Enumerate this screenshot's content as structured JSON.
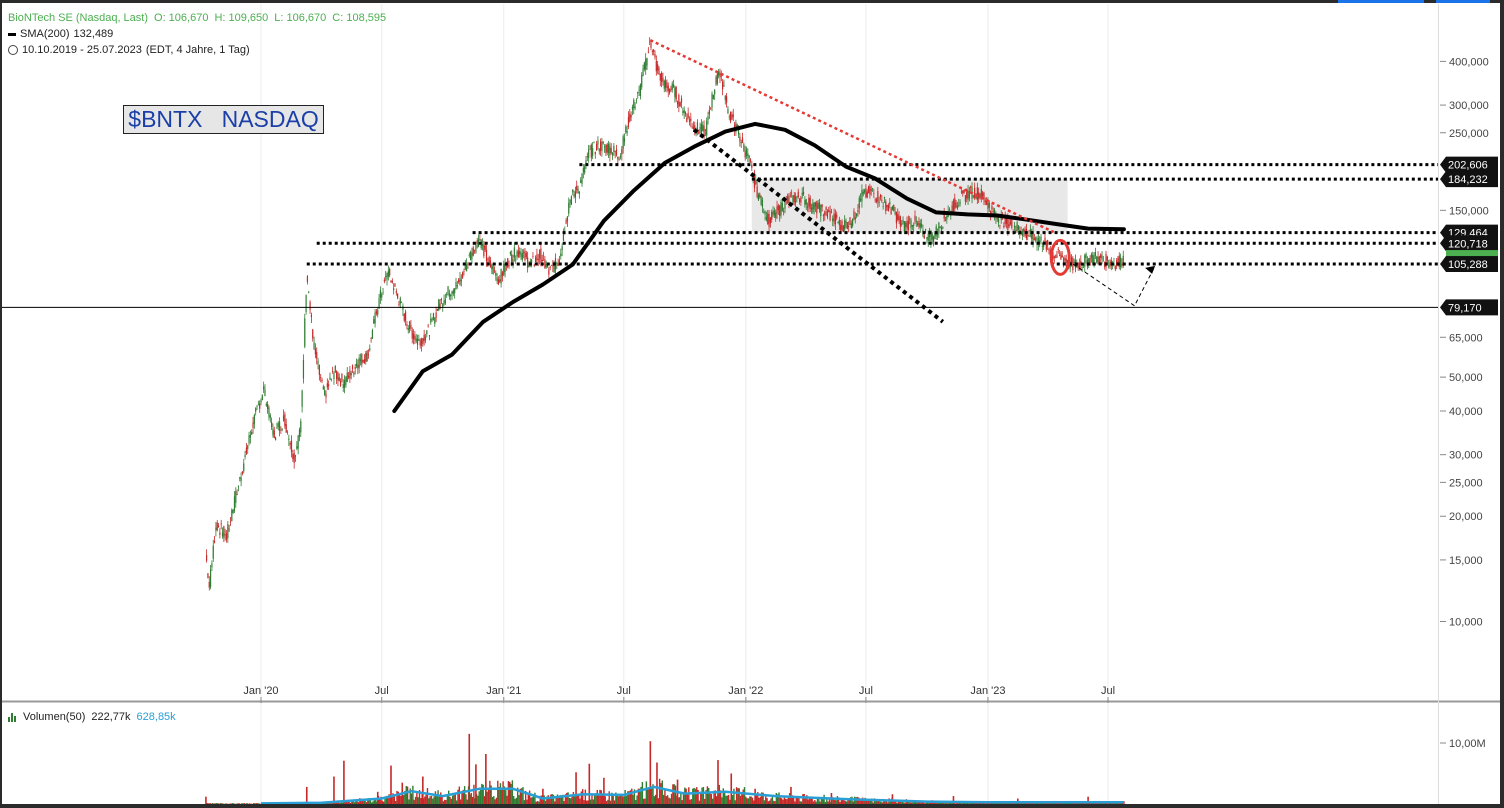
{
  "header": {
    "instrument": "BioNTech SE (Nasdaq, Last)",
    "ohlc": {
      "open": "O: 106,670",
      "high": "H: 109,650",
      "low": "L: 106,670",
      "close": "C: 108,595"
    },
    "sma_label": "SMA(200)",
    "sma_value": "132,489",
    "range": "10.10.2019 - 25.07.2023",
    "range_info": "(EDT, 4 Jahre, 1 Tag)"
  },
  "annotation_box": "$BNTX   NASDAQ",
  "volume_legend": {
    "label": "Volumen(50)",
    "value1": "222,77k",
    "value2": "628,85k"
  },
  "colors": {
    "up": "#2e7d32",
    "down": "#c62828",
    "sma": "#000000",
    "trend_red": "#e53935",
    "volume_ma": "#2a9fd6",
    "level_tag": "#111111",
    "last_price_tag": "#4caf50"
  },
  "chart_data": {
    "type": "line",
    "subtype": "candlestick-price-chart",
    "scale": "log",
    "ylim": [
      10,
      480
    ],
    "xlim": [
      "2019-10-10",
      "2023-07-25"
    ],
    "y_ticks": [
      "400,000",
      "300,000",
      "250,000",
      "150,000",
      "65,000",
      "50,000",
      "40,000",
      "30,000",
      "25,000",
      "20,000",
      "15,000",
      "10,000"
    ],
    "x_ticks": [
      {
        "date": "2020-01-01",
        "label": "Jan '20"
      },
      {
        "date": "2020-07-01",
        "label": "Jul"
      },
      {
        "date": "2021-01-01",
        "label": "Jan '21"
      },
      {
        "date": "2021-07-01",
        "label": "Jul"
      },
      {
        "date": "2022-01-01",
        "label": "Jan '22"
      },
      {
        "date": "2022-07-01",
        "label": "Jul"
      },
      {
        "date": "2023-01-01",
        "label": "Jan '23"
      },
      {
        "date": "2023-07-01",
        "label": "Jul"
      }
    ],
    "price_series": {
      "name": "BioNTech SE (Nasdaq, Last)",
      "points": [
        [
          "2019-10-10",
          15.5
        ],
        [
          "2019-10-15",
          12.5
        ],
        [
          "2019-10-25",
          19.0
        ],
        [
          "2019-11-10",
          17.5
        ],
        [
          "2019-12-01",
          26.0
        ],
        [
          "2019-12-20",
          37.0
        ],
        [
          "2020-01-05",
          46.0
        ],
        [
          "2020-01-20",
          34.0
        ],
        [
          "2020-02-05",
          38.0
        ],
        [
          "2020-02-20",
          29.5
        ],
        [
          "2020-03-01",
          36.0
        ],
        [
          "2020-03-10",
          100.0
        ],
        [
          "2020-03-20",
          62.0
        ],
        [
          "2020-04-05",
          44.0
        ],
        [
          "2020-04-20",
          52.0
        ],
        [
          "2020-05-05",
          48.0
        ],
        [
          "2020-05-25",
          55.0
        ],
        [
          "2020-06-10",
          58.0
        ],
        [
          "2020-06-25",
          80.0
        ],
        [
          "2020-07-10",
          100.0
        ],
        [
          "2020-07-25",
          85.0
        ],
        [
          "2020-08-10",
          70.0
        ],
        [
          "2020-08-25",
          63.0
        ],
        [
          "2020-09-10",
          68.0
        ],
        [
          "2020-09-25",
          80.0
        ],
        [
          "2020-10-10",
          88.0
        ],
        [
          "2020-10-25",
          92.0
        ],
        [
          "2020-11-10",
          110.0
        ],
        [
          "2020-11-25",
          125.0
        ],
        [
          "2020-12-10",
          105.0
        ],
        [
          "2020-12-25",
          95.0
        ],
        [
          "2021-01-10",
          110.0
        ],
        [
          "2021-01-25",
          115.0
        ],
        [
          "2021-02-10",
          105.0
        ],
        [
          "2021-02-25",
          112.0
        ],
        [
          "2021-03-10",
          100.0
        ],
        [
          "2021-03-25",
          108.0
        ],
        [
          "2021-04-10",
          160.0
        ],
        [
          "2021-04-25",
          175.0
        ],
        [
          "2021-05-10",
          220.0
        ],
        [
          "2021-05-25",
          230.0
        ],
        [
          "2021-06-10",
          225.0
        ],
        [
          "2021-06-25",
          215.0
        ],
        [
          "2021-07-10",
          280.0
        ],
        [
          "2021-07-25",
          330.0
        ],
        [
          "2021-08-10",
          460.0
        ],
        [
          "2021-08-20",
          380.0
        ],
        [
          "2021-09-01",
          340.0
        ],
        [
          "2021-09-15",
          330.0
        ],
        [
          "2021-10-01",
          285.0
        ],
        [
          "2021-10-15",
          260.0
        ],
        [
          "2021-11-01",
          250.0
        ],
        [
          "2021-11-12",
          320.0
        ],
        [
          "2021-11-22",
          380.0
        ],
        [
          "2021-12-05",
          290.0
        ],
        [
          "2021-12-20",
          250.0
        ],
        [
          "2022-01-05",
          210.0
        ],
        [
          "2022-01-20",
          165.0
        ],
        [
          "2022-02-05",
          140.0
        ],
        [
          "2022-02-20",
          150.0
        ],
        [
          "2022-03-05",
          160.0
        ],
        [
          "2022-03-25",
          165.0
        ],
        [
          "2022-04-10",
          155.0
        ],
        [
          "2022-04-25",
          150.0
        ],
        [
          "2022-05-10",
          145.0
        ],
        [
          "2022-05-25",
          135.0
        ],
        [
          "2022-06-10",
          140.0
        ],
        [
          "2022-06-25",
          165.0
        ],
        [
          "2022-07-10",
          170.0
        ],
        [
          "2022-07-25",
          160.0
        ],
        [
          "2022-08-10",
          150.0
        ],
        [
          "2022-08-25",
          135.0
        ],
        [
          "2022-09-10",
          140.0
        ],
        [
          "2022-09-25",
          130.0
        ],
        [
          "2022-10-10",
          125.0
        ],
        [
          "2022-10-25",
          140.0
        ],
        [
          "2022-11-10",
          155.0
        ],
        [
          "2022-11-25",
          165.0
        ],
        [
          "2022-12-10",
          170.0
        ],
        [
          "2022-12-25",
          165.0
        ],
        [
          "2023-01-10",
          145.0
        ],
        [
          "2023-01-25",
          140.0
        ],
        [
          "2023-02-10",
          135.0
        ],
        [
          "2023-02-25",
          130.0
        ],
        [
          "2023-03-10",
          125.0
        ],
        [
          "2023-03-25",
          122.0
        ],
        [
          "2023-04-10",
          112.0
        ],
        [
          "2023-04-25",
          110.0
        ],
        [
          "2023-05-10",
          104.0
        ],
        [
          "2023-05-25",
          107.0
        ],
        [
          "2023-06-10",
          110.0
        ],
        [
          "2023-06-25",
          108.0
        ],
        [
          "2023-07-10",
          106.0
        ],
        [
          "2023-07-25",
          108.595
        ]
      ]
    },
    "sma_series": {
      "name": "SMA(200)",
      "points": [
        [
          "2020-07-20",
          40.0
        ],
        [
          "2020-09-01",
          52.0
        ],
        [
          "2020-10-15",
          58.0
        ],
        [
          "2020-12-01",
          72.0
        ],
        [
          "2021-01-15",
          82.0
        ],
        [
          "2021-03-01",
          92.0
        ],
        [
          "2021-04-15",
          105.0
        ],
        [
          "2021-06-01",
          140.0
        ],
        [
          "2021-07-15",
          170.0
        ],
        [
          "2021-09-01",
          205.0
        ],
        [
          "2021-10-15",
          228.0
        ],
        [
          "2021-12-01",
          252.0
        ],
        [
          "2022-01-15",
          265.0
        ],
        [
          "2022-03-01",
          255.0
        ],
        [
          "2022-04-15",
          230.0
        ],
        [
          "2022-06-01",
          200.0
        ],
        [
          "2022-07-15",
          185.0
        ],
        [
          "2022-09-01",
          162.0
        ],
        [
          "2022-10-15",
          148.0
        ],
        [
          "2022-12-01",
          146.0
        ],
        [
          "2023-01-15",
          145.0
        ],
        [
          "2023-03-01",
          141.0
        ],
        [
          "2023-04-15",
          137.0
        ],
        [
          "2023-06-01",
          133.0
        ],
        [
          "2023-07-25",
          132.489
        ]
      ]
    },
    "horizontal_levels": [
      {
        "value": 202.606,
        "label": "202,606",
        "style": "dotted",
        "from": "2021-04-25"
      },
      {
        "value": 184.232,
        "label": "184,232",
        "style": "dotted",
        "from": "2022-01-10"
      },
      {
        "value": 129.464,
        "label": "129,464",
        "style": "dotted",
        "from": "2020-11-15"
      },
      {
        "value": 120.718,
        "label": "120,718",
        "style": "dotted",
        "from": "2020-03-25"
      },
      {
        "value": 105.288,
        "label": "105,288",
        "style": "dotted",
        "from": "2020-03-10"
      },
      {
        "value": 79.17,
        "label": "79,170",
        "style": "solid",
        "from": "2019-10-10"
      }
    ],
    "trendlines": [
      {
        "kind": "resistance",
        "color": "#e53935",
        "from": [
          "2021-08-10",
          460.0
        ],
        "to": [
          "2023-04-10",
          130.0
        ]
      },
      {
        "kind": "channel",
        "color": "#000000",
        "from": [
          "2021-10-15",
          255.0
        ],
        "to": [
          "2022-10-25",
          72.0
        ]
      }
    ],
    "range_box": {
      "from": "2022-01-10",
      "to": "2023-05-01",
      "top": 184.232,
      "bottom": 129.464
    },
    "projection": [
      [
        "2023-05-01",
        108.0
      ],
      [
        "2023-08-10",
        80.0
      ],
      [
        "2023-09-10",
        104.0
      ]
    ],
    "highlight": {
      "date": "2023-04-20",
      "value": 110.0,
      "color": "#e53935"
    },
    "volume": {
      "name": "Volumen(50)",
      "ylim": [
        0,
        13000000
      ],
      "y_ticks": [
        "10,00M"
      ],
      "ma_values": [
        [
          "2020-01-01",
          0.1
        ],
        [
          "2020-04-01",
          0.2
        ],
        [
          "2020-07-01",
          0.9
        ],
        [
          "2020-08-15",
          2.1
        ],
        [
          "2020-10-01",
          1.3
        ],
        [
          "2020-11-25",
          2.5
        ],
        [
          "2021-01-15",
          2.5
        ],
        [
          "2021-03-01",
          0.9
        ],
        [
          "2021-05-01",
          1.6
        ],
        [
          "2021-07-01",
          1.5
        ],
        [
          "2021-08-15",
          2.8
        ],
        [
          "2021-10-01",
          1.7
        ],
        [
          "2021-12-01",
          2.0
        ],
        [
          "2022-02-15",
          1.3
        ],
        [
          "2022-06-01",
          0.8
        ],
        [
          "2022-10-01",
          0.4
        ],
        [
          "2023-01-01",
          0.3
        ],
        [
          "2023-04-01",
          0.3
        ],
        [
          "2023-07-25",
          0.3
        ]
      ],
      "spike_bars_millions": [
        [
          "2019-10-10",
          1.2
        ],
        [
          "2020-03-10",
          2.8
        ],
        [
          "2020-04-20",
          4.5
        ],
        [
          "2020-05-05",
          7.1
        ],
        [
          "2020-06-25",
          2.0
        ],
        [
          "2020-07-15",
          6.3
        ],
        [
          "2020-08-01",
          3.5
        ],
        [
          "2020-09-01",
          4.5
        ],
        [
          "2020-11-10",
          11.5
        ],
        [
          "2020-11-20",
          6.5
        ],
        [
          "2020-12-05",
          8.2
        ],
        [
          "2021-01-10",
          3.6
        ],
        [
          "2021-03-01",
          2.5
        ],
        [
          "2021-04-20",
          5.2
        ],
        [
          "2021-05-10",
          6.6
        ],
        [
          "2021-06-01",
          4.3
        ],
        [
          "2021-08-10",
          10.3
        ],
        [
          "2021-08-20",
          6.8
        ],
        [
          "2021-09-20",
          4.0
        ],
        [
          "2021-11-20",
          7.2
        ],
        [
          "2021-12-10",
          5.0
        ],
        [
          "2022-01-15",
          2.5
        ],
        [
          "2022-03-10",
          2.8
        ],
        [
          "2022-05-10",
          1.8
        ],
        [
          "2022-08-10",
          1.6
        ],
        [
          "2022-11-10",
          1.3
        ],
        [
          "2023-02-15",
          0.9
        ],
        [
          "2023-06-01",
          1.2
        ]
      ]
    }
  }
}
